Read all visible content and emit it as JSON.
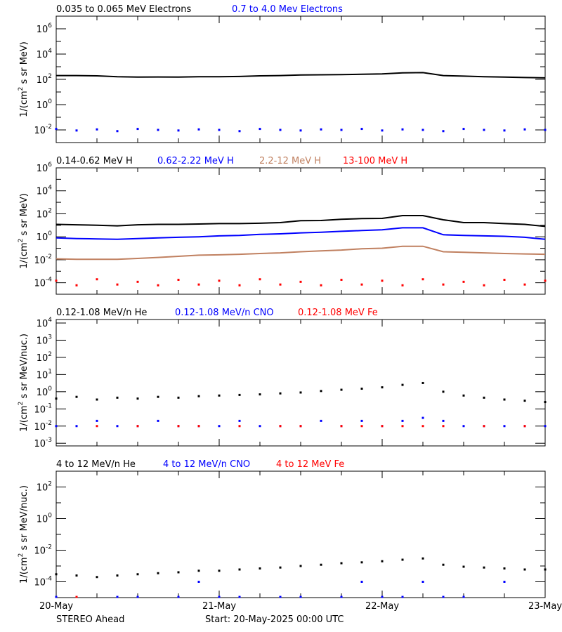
{
  "chart_data": [
    {
      "type": "line",
      "ylabel": {
        "pre": "1/(cm",
        "sup": "2",
        "post": " s sr MeV)"
      },
      "ylim": [
        0.001,
        10000000
      ],
      "yscale": "log",
      "ytick_exponents": [
        6,
        4,
        2,
        0,
        -2
      ],
      "series": [
        {
          "name": "0.035 to 0.065 MeV Electrons",
          "color": "#000000",
          "style": "line",
          "values": [
            200,
            200,
            190,
            160,
            150,
            155,
            150,
            160,
            160,
            170,
            190,
            200,
            220,
            230,
            240,
            250,
            270,
            330,
            340,
            200,
            180,
            160,
            150,
            140,
            130
          ]
        },
        {
          "name": "0.7 to 4.0 Mev Electrons",
          "color": "#0000ff",
          "style": "scatter",
          "values": [
            0.012,
            0.009,
            0.011,
            0.008,
            0.012,
            0.01,
            0.009,
            0.011,
            0.01,
            0.008,
            0.012,
            0.01,
            0.009,
            0.011,
            0.01,
            0.012,
            0.009,
            0.011,
            0.01,
            0.008,
            0.012,
            0.01,
            0.009,
            0.011,
            0.01
          ]
        }
      ]
    },
    {
      "type": "line",
      "ylabel": {
        "pre": "1/(cm",
        "sup": "2",
        "post": " s sr MeV)"
      },
      "ylim": [
        1e-05,
        1000000
      ],
      "yscale": "log",
      "ytick_exponents": [
        6,
        4,
        2,
        0,
        -2,
        -4
      ],
      "series": [
        {
          "name": "0.14-0.62 MeV H",
          "color": "#000000",
          "style": "line",
          "values": [
            12,
            11,
            10,
            9,
            11,
            12,
            12,
            13,
            14,
            14,
            15,
            17,
            25,
            26,
            33,
            38,
            40,
            70,
            70,
            30,
            17,
            17,
            14,
            12,
            8
          ]
        },
        {
          "name": "0.62-2.22 MeV H",
          "color": "#0000ff",
          "style": "line",
          "values": [
            0.8,
            0.7,
            0.65,
            0.6,
            0.7,
            0.8,
            0.9,
            1.0,
            1.2,
            1.3,
            1.6,
            1.8,
            2.2,
            2.5,
            3.0,
            3.5,
            4.0,
            6.0,
            6.0,
            1.5,
            1.3,
            1.2,
            1.1,
            0.9,
            0.6
          ]
        },
        {
          "name": "2.2-12 MeV H",
          "color": "#c08060",
          "style": "line",
          "values": [
            0.012,
            0.011,
            0.011,
            0.011,
            0.013,
            0.016,
            0.02,
            0.025,
            0.027,
            0.03,
            0.035,
            0.04,
            0.05,
            0.06,
            0.07,
            0.09,
            0.1,
            0.15,
            0.15,
            0.05,
            0.045,
            0.04,
            0.035,
            0.032,
            0.03
          ]
        },
        {
          "name": "13-100 MeV H",
          "color": "#ff0000",
          "style": "scatter",
          "values": [
            0.00015,
            6e-05,
            0.0002,
            7e-05,
            0.00012,
            6e-05,
            0.00018,
            7e-05,
            0.00015,
            6e-05,
            0.0002,
            7e-05,
            0.00012,
            6e-05,
            0.00018,
            7e-05,
            0.00015,
            6e-05,
            0.0002,
            7e-05,
            0.00012,
            6e-05,
            0.00018,
            7e-05,
            0.00015
          ]
        }
      ]
    },
    {
      "type": "scatter",
      "ylabel": {
        "pre": "1/(cm",
        "sup": "2",
        "post": " s sr MeV/nuc.)"
      },
      "ylim": [
        0.0007,
        16000
      ],
      "yscale": "log",
      "ytick_exponents": [
        4,
        3,
        2,
        1,
        0,
        -1,
        -2,
        -3
      ],
      "series": [
        {
          "name": "0.12-1.08 MeV/n He",
          "color": "#000000",
          "style": "scatter",
          "values": [
            0.4,
            0.5,
            0.35,
            0.45,
            0.4,
            0.5,
            0.45,
            0.55,
            0.6,
            0.65,
            0.7,
            0.8,
            0.9,
            1.1,
            1.3,
            1.5,
            1.8,
            2.5,
            3.2,
            1.0,
            0.6,
            0.45,
            0.35,
            0.3,
            0.25
          ]
        },
        {
          "name": "0.12-1.08 MeV/n CNO",
          "color": "#0000ff",
          "style": "scatter",
          "values": [
            0.01,
            0.01,
            0.02,
            0.01,
            0.01,
            0.02,
            0.01,
            0.01,
            0.01,
            0.02,
            0.01,
            0.01,
            0.01,
            0.02,
            0.01,
            0.02,
            0.01,
            0.02,
            0.03,
            0.02,
            0.01,
            0.01,
            0.01,
            0.01,
            0.01
          ]
        },
        {
          "name": "0.12-1.08 MeV Fe",
          "color": "#ff0000",
          "style": "scatter",
          "values": [
            null,
            null,
            0.01,
            null,
            0.01,
            null,
            0.01,
            0.01,
            null,
            0.01,
            null,
            0.01,
            0.01,
            null,
            0.01,
            0.01,
            0.01,
            0.01,
            0.01,
            0.01,
            null,
            0.01,
            null,
            0.01,
            null
          ]
        }
      ]
    },
    {
      "type": "scatter",
      "ylabel": {
        "pre": "1/(cm",
        "sup": "2",
        "post": " s sr MeV/nuc.)"
      },
      "ylim": [
        1e-05,
        1000
      ],
      "yscale": "log",
      "ytick_exponents": [
        2,
        0,
        -2,
        -4
      ],
      "series": [
        {
          "name": "4 to 12 MeV/n He",
          "color": "#000000",
          "style": "scatter",
          "values": [
            0.0003,
            0.00025,
            0.0002,
            0.00025,
            0.0003,
            0.00035,
            0.0004,
            0.0005,
            0.0005,
            0.0006,
            0.0007,
            0.0008,
            0.001,
            0.0012,
            0.0015,
            0.0017,
            0.002,
            0.0025,
            0.003,
            0.0012,
            0.0009,
            0.0008,
            0.0007,
            0.0006,
            0.0006
          ]
        },
        {
          "name": "4 to 12 MeV/n CNO",
          "color": "#0000ff",
          "style": "scatter",
          "values": [
            1.1e-05,
            null,
            null,
            1.1e-05,
            1.1e-05,
            null,
            1.1e-05,
            0.0001,
            1.1e-05,
            1.1e-05,
            null,
            1.1e-05,
            1.1e-05,
            null,
            1.1e-05,
            0.0001,
            1.1e-05,
            1.1e-05,
            0.0001,
            1.1e-05,
            1.1e-05,
            null,
            0.0001,
            null,
            null
          ]
        },
        {
          "name": "4 to 12 MeV Fe",
          "color": "#ff0000",
          "style": "scatter",
          "values": [
            null,
            1.1e-05,
            null,
            null,
            null,
            null,
            null,
            null,
            null,
            null,
            null,
            null,
            null,
            null,
            null,
            null,
            null,
            null,
            null,
            null,
            null,
            null,
            null,
            null,
            null
          ]
        }
      ]
    }
  ],
  "x": [
    "2025-05-20T00:00",
    "2025-05-20T03:00",
    "2025-05-20T06:00",
    "2025-05-20T09:00",
    "2025-05-20T12:00",
    "2025-05-20T15:00",
    "2025-05-20T18:00",
    "2025-05-20T21:00",
    "2025-05-21T00:00",
    "2025-05-21T03:00",
    "2025-05-21T06:00",
    "2025-05-21T09:00",
    "2025-05-21T12:00",
    "2025-05-21T15:00",
    "2025-05-21T18:00",
    "2025-05-21T21:00",
    "2025-05-22T00:00",
    "2025-05-22T03:00",
    "2025-05-22T06:00",
    "2025-05-22T09:00",
    "2025-05-22T12:00",
    "2025-05-22T15:00",
    "2025-05-22T18:00",
    "2025-05-22T21:00",
    "2025-05-23T00:00"
  ],
  "xlim": [
    "2025-05-20T00:00",
    "2025-05-23T00:00"
  ],
  "xtick_labels": [
    "20-May",
    "21-May",
    "22-May",
    "23-May"
  ],
  "footer": {
    "spacecraft": "STEREO Ahead",
    "start": "Start: 20-May-2025 00:00 UTC"
  },
  "tick_base": "10"
}
